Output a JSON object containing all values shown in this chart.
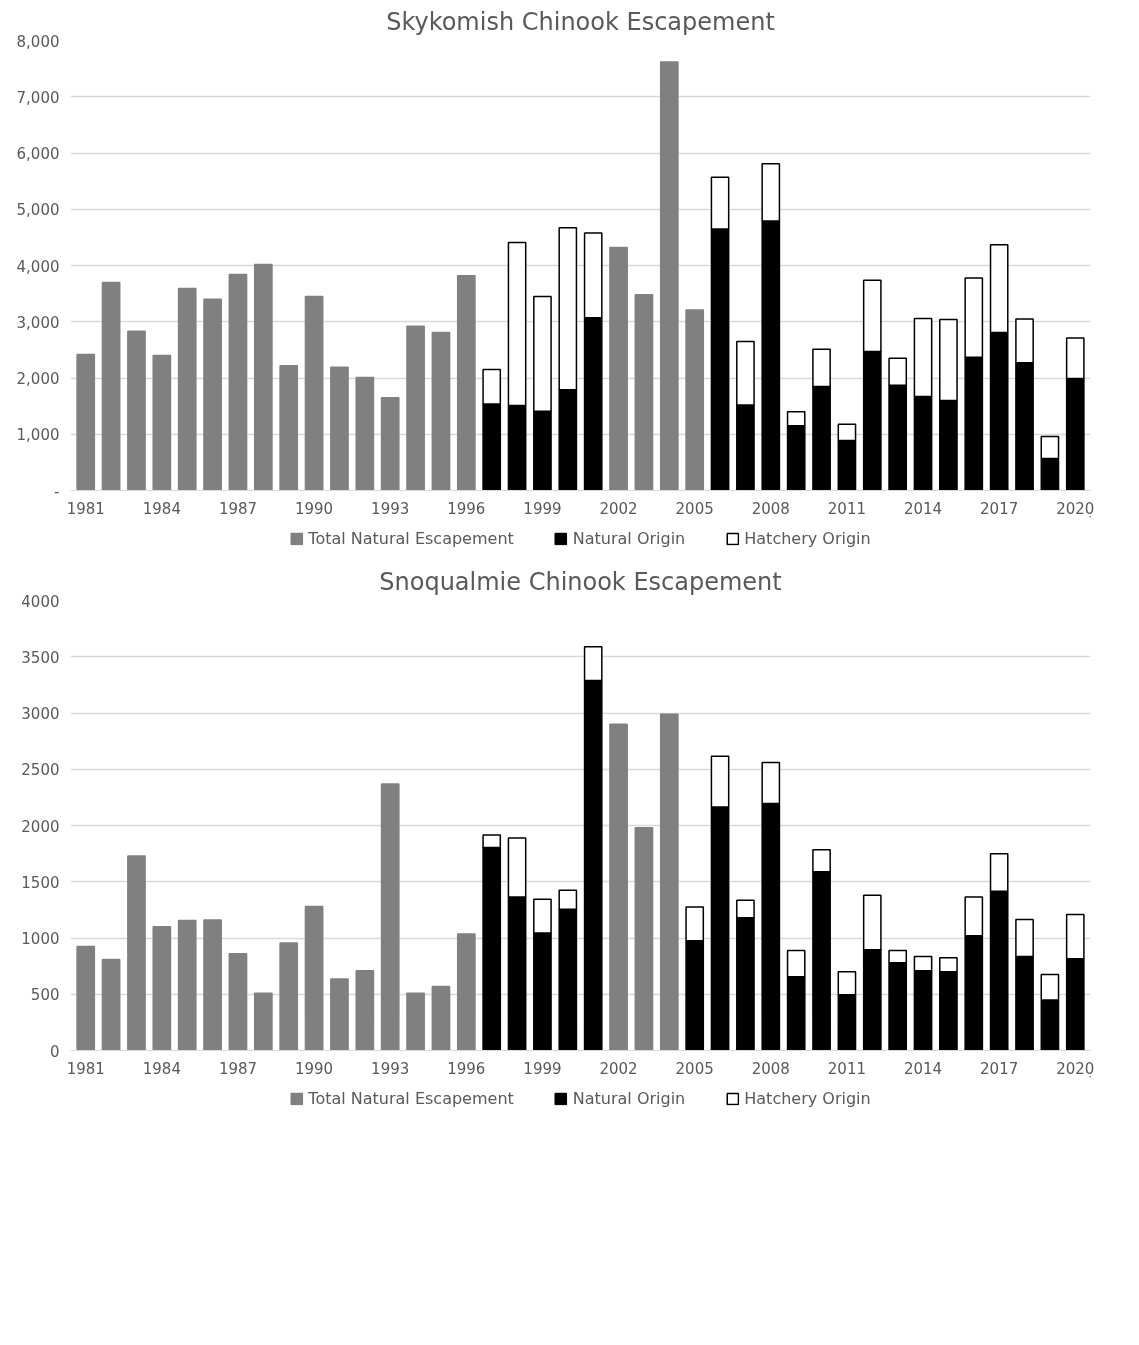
{
  "chart_data": [
    {
      "type": "bar",
      "title": "Skykomish Chinook Escapement",
      "stacked": true,
      "grid": "y",
      "legend": "bottom",
      "categories": [
        "1981",
        null,
        null,
        "1984",
        null,
        null,
        "1987",
        null,
        null,
        "1990",
        null,
        null,
        "1993",
        null,
        null,
        "1996",
        null,
        null,
        "1999",
        null,
        null,
        "2002",
        null,
        null,
        "2005",
        null,
        null,
        "2008",
        null,
        null,
        "2011",
        null,
        null,
        "2014",
        null,
        null,
        "2017",
        null,
        null,
        "2020"
      ],
      "ylim": [
        0,
        8000
      ],
      "yticks": [
        {
          "value": 0,
          "label": "-"
        },
        {
          "value": 1000,
          "label": "1,000"
        },
        {
          "value": 2000,
          "label": "2,000"
        },
        {
          "value": 3000,
          "label": "3,000"
        },
        {
          "value": 4000,
          "label": "4,000"
        },
        {
          "value": 5000,
          "label": "5,000"
        },
        {
          "value": 6000,
          "label": "6,000"
        },
        {
          "value": 7000,
          "label": "7,000"
        },
        {
          "value": 8000,
          "label": "8,000"
        }
      ],
      "series": [
        {
          "name": "Total Natural Escapement",
          "color": "#808080",
          "values": [
            2420,
            3700,
            2830,
            2400,
            3590,
            3400,
            3840,
            4020,
            2220,
            3450,
            2190,
            2010,
            1650,
            2920,
            2810,
            3820,
            null,
            null,
            null,
            null,
            null,
            4320,
            3480,
            7620,
            3210,
            null,
            null,
            null,
            null,
            null,
            null,
            null,
            null,
            null,
            null,
            null,
            null,
            null,
            null,
            null
          ]
        },
        {
          "name": "Natural Origin",
          "color": "#000000",
          "values": [
            null,
            null,
            null,
            null,
            null,
            null,
            null,
            null,
            null,
            null,
            null,
            null,
            null,
            null,
            null,
            null,
            1540,
            1510,
            1410,
            1790,
            3070,
            null,
            null,
            null,
            null,
            4650,
            1520,
            4790,
            1150,
            1850,
            890,
            2470,
            1870,
            1670,
            1600,
            2370,
            2810,
            2270,
            570,
            1990
          ]
        },
        {
          "name": "Hatchery Origin",
          "color": "#ffffff",
          "values": [
            null,
            null,
            null,
            null,
            null,
            null,
            null,
            null,
            null,
            null,
            null,
            null,
            null,
            null,
            null,
            null,
            610,
            2900,
            2040,
            2880,
            1510,
            null,
            null,
            null,
            null,
            920,
            1130,
            1020,
            250,
            660,
            290,
            1270,
            480,
            1390,
            1440,
            1410,
            1560,
            780,
            390,
            720
          ]
        }
      ]
    },
    {
      "type": "bar",
      "title": "Snoqualmie Chinook Escapement",
      "stacked": true,
      "grid": "y",
      "legend": "bottom",
      "categories": [
        "1981",
        null,
        null,
        "1984",
        null,
        null,
        "1987",
        null,
        null,
        "1990",
        null,
        null,
        "1993",
        null,
        null,
        "1996",
        null,
        null,
        "1999",
        null,
        null,
        "2002",
        null,
        null,
        "2005",
        null,
        null,
        "2008",
        null,
        null,
        "2011",
        null,
        null,
        "2014",
        null,
        null,
        "2017",
        null,
        null,
        "2020"
      ],
      "ylim": [
        0,
        4000
      ],
      "yticks": [
        0,
        500,
        1000,
        1500,
        2000,
        2500,
        3000,
        3500,
        4000
      ],
      "series": [
        {
          "name": "Total Natural Escapement",
          "color": "#808080",
          "values": [
            925,
            810,
            1730,
            1100,
            1155,
            1160,
            860,
            510,
            955,
            1280,
            635,
            710,
            2370,
            510,
            570,
            1035,
            null,
            null,
            null,
            null,
            null,
            2900,
            1980,
            2990,
            null,
            null,
            null,
            null,
            null,
            null,
            null,
            null,
            null,
            null,
            null,
            null,
            null,
            null,
            null,
            null
          ]
        },
        {
          "name": "Natural Origin",
          "color": "#000000",
          "values": [
            null,
            null,
            null,
            null,
            null,
            null,
            null,
            null,
            null,
            null,
            null,
            null,
            null,
            null,
            null,
            null,
            1805,
            1365,
            1045,
            1255,
            3290,
            null,
            null,
            null,
            975,
            2165,
            1180,
            2195,
            655,
            1590,
            495,
            895,
            780,
            710,
            700,
            1020,
            1415,
            835,
            450,
            815
          ]
        },
        {
          "name": "Hatchery Origin",
          "color": "#ffffff",
          "values": [
            null,
            null,
            null,
            null,
            null,
            null,
            null,
            null,
            null,
            null,
            null,
            null,
            null,
            null,
            null,
            null,
            110,
            525,
            300,
            170,
            300,
            null,
            null,
            null,
            300,
            450,
            155,
            365,
            235,
            195,
            205,
            485,
            110,
            125,
            125,
            345,
            335,
            330,
            225,
            395
          ]
        }
      ]
    }
  ]
}
